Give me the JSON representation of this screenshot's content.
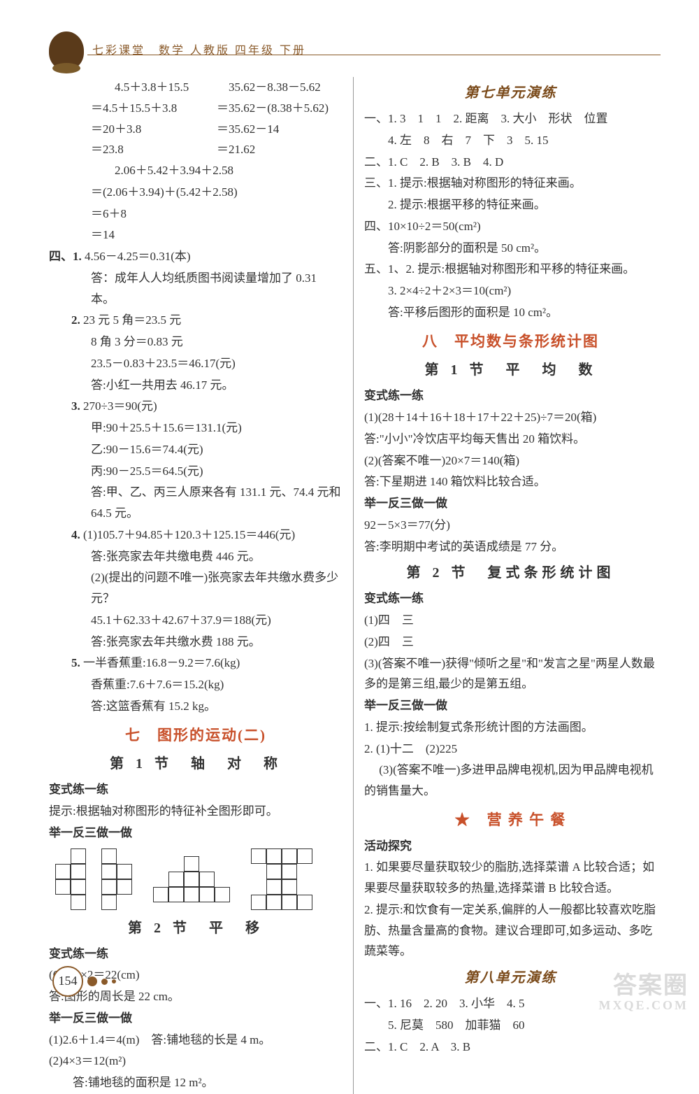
{
  "header": {
    "title": "七彩课堂　数学 人教版 四年级 下册"
  },
  "page_number": "154",
  "watermark": {
    "main": "答案圈",
    "sub": "MXQE.COM"
  },
  "left": {
    "calc_block": [
      {
        "a": "　　4.5＋3.8＋15.5",
        "b": "　35.62－8.38－5.62"
      },
      {
        "a": "＝4.5＋15.5＋3.8",
        "b": "＝35.62－(8.38＋5.62)"
      },
      {
        "a": "＝20＋3.8",
        "b": "＝35.62－14"
      },
      {
        "a": "＝23.8",
        "b": "＝21.62"
      }
    ],
    "calc_block2": [
      "　　2.06＋5.42＋3.94＋2.58",
      "＝(2.06＋3.94)＋(5.42＋2.58)",
      "＝6＋8",
      "＝14"
    ],
    "q4": {
      "label": "四、",
      "items": [
        {
          "n": "1.",
          "lines": [
            "4.56－4.25＝0.31(本)",
            "答：成年人人均纸质图书阅读量增加了 0.31 本。"
          ]
        },
        {
          "n": "2.",
          "lines": [
            "23 元 5 角＝23.5 元",
            "8 角 3 分＝0.83 元",
            "23.5－0.83＋23.5＝46.17(元)",
            "答:小红一共用去 46.17 元。"
          ]
        },
        {
          "n": "3.",
          "lines": [
            "270÷3＝90(元)",
            "甲:90＋25.5＋15.6＝131.1(元)",
            "乙:90－15.6＝74.4(元)",
            "丙:90－25.5＝64.5(元)",
            "答:甲、乙、丙三人原来各有 131.1 元、74.4 元和64.5 元。"
          ]
        },
        {
          "n": "4.",
          "lines": [
            "(1)105.7＋94.85＋120.3＋125.15＝446(元)",
            "答:张亮家去年共缴电费 446 元。",
            "(2)(提出的问题不唯一)张亮家去年共缴水费多少元？",
            "45.1＋62.33＋42.67＋37.9＝188(元)",
            "答:张亮家去年共缴水费 188 元。"
          ]
        },
        {
          "n": "5.",
          "lines": [
            "一半香蕉重:16.8－9.2＝7.6(kg)",
            "香蕉重:7.6＋7.6＝15.2(kg)",
            "答:这篮香蕉有 15.2 kg。"
          ]
        }
      ]
    },
    "h_unit7": "七　图形的运动(二)",
    "h_sec1": "第 1 节　轴　对　称",
    "bx1_label": "变式练一练",
    "bx1_text": "提示:根据轴对称图形的特征补全图形即可。",
    "juyi1": "举一反三做一做",
    "h_sec2": "第 2 节　平　移",
    "bx2_label": "变式练一练",
    "bx2_lines": [
      "(6＋5)×2＝22(cm)",
      "答:图形的周长是 22 cm。"
    ],
    "juyi2": "举一反三做一做",
    "juyi2_lines": [
      "(1)2.6＋1.4＝4(m)　答:铺地毯的长是 4 m。",
      "(2)4×3＝12(m²)",
      "　　答:铺地毯的面积是 12 m²。"
    ]
  },
  "right": {
    "h_practice7": "第七单元演练",
    "p7": [
      "一、1. 3　1　1　2. 距离　3. 大小　形状　位置",
      "　　4. 左　8　右　7　下　3　5. 15",
      "二、1. C　2. B　3. B　4. D",
      "三、1. 提示:根据轴对称图形的特征来画。",
      "　　2. 提示:根据平移的特征来画。",
      "四、10×10÷2＝50(cm²)",
      "　　答:阴影部分的面积是 50 cm²。",
      "五、1、2. 提示:根据轴对称图形和平移的特征来画。",
      "　　3. 2×4÷2＋2×3＝10(cm²)",
      "　　答:平移后图形的面积是 10 cm²。"
    ],
    "h_unit8": "八　平均数与条形统计图",
    "h_sec1": "第 1 节　平　均　数",
    "bx1_label": "变式练一练",
    "bx1_lines": [
      "(1)(28＋14＋16＋18＋17＋22＋25)÷7＝20(箱)",
      "答:\"小小\"冷饮店平均每天售出 20 箱饮料。",
      "(2)(答案不唯一)20×7＝140(箱)",
      "答:下星期进 140 箱饮料比较合适。"
    ],
    "juyi1": "举一反三做一做",
    "juyi1_lines": [
      "92－5×3＝77(分)",
      "答:李明期中考试的英语成绩是 77 分。"
    ],
    "h_sec2": "第 2 节　复式条形统计图",
    "bx2_label": "变式练一练",
    "bx2_lines": [
      "(1)四　三",
      "(2)四　三",
      "(3)(答案不唯一)获得\"倾听之星\"和\"发言之星\"两星人数最多的是第三组,最少的是第五组。"
    ],
    "juyi2": "举一反三做一做",
    "juyi2_lines": [
      "1. 提示:按绘制复式条形统计图的方法画图。",
      "2. (1)十二　(2)225",
      "　 (3)(答案不唯一)多进甲品牌电视机,因为甲品牌电视机的销售量大。"
    ],
    "h_star": "★　营 养 午 餐",
    "hd_label": "活动探究",
    "hd_lines": [
      "1. 如果要尽量获取较少的脂肪,选择菜谱 A 比较合适；如果要尽量获取较多的热量,选择菜谱 B 比较合适。",
      "2. 提示:和饮食有一定关系,偏胖的人一般都比较喜欢吃脂肪、热量含量高的食物。建议合理即可,如多运动、多吃蔬菜等。"
    ],
    "h_practice8": "第八单元演练",
    "p8": [
      "一、1. 16　2. 20　3. 小华　4. 5",
      "　　5. 尼莫　580　加菲猫　60",
      "二、1. C　2. A　3. B"
    ]
  }
}
